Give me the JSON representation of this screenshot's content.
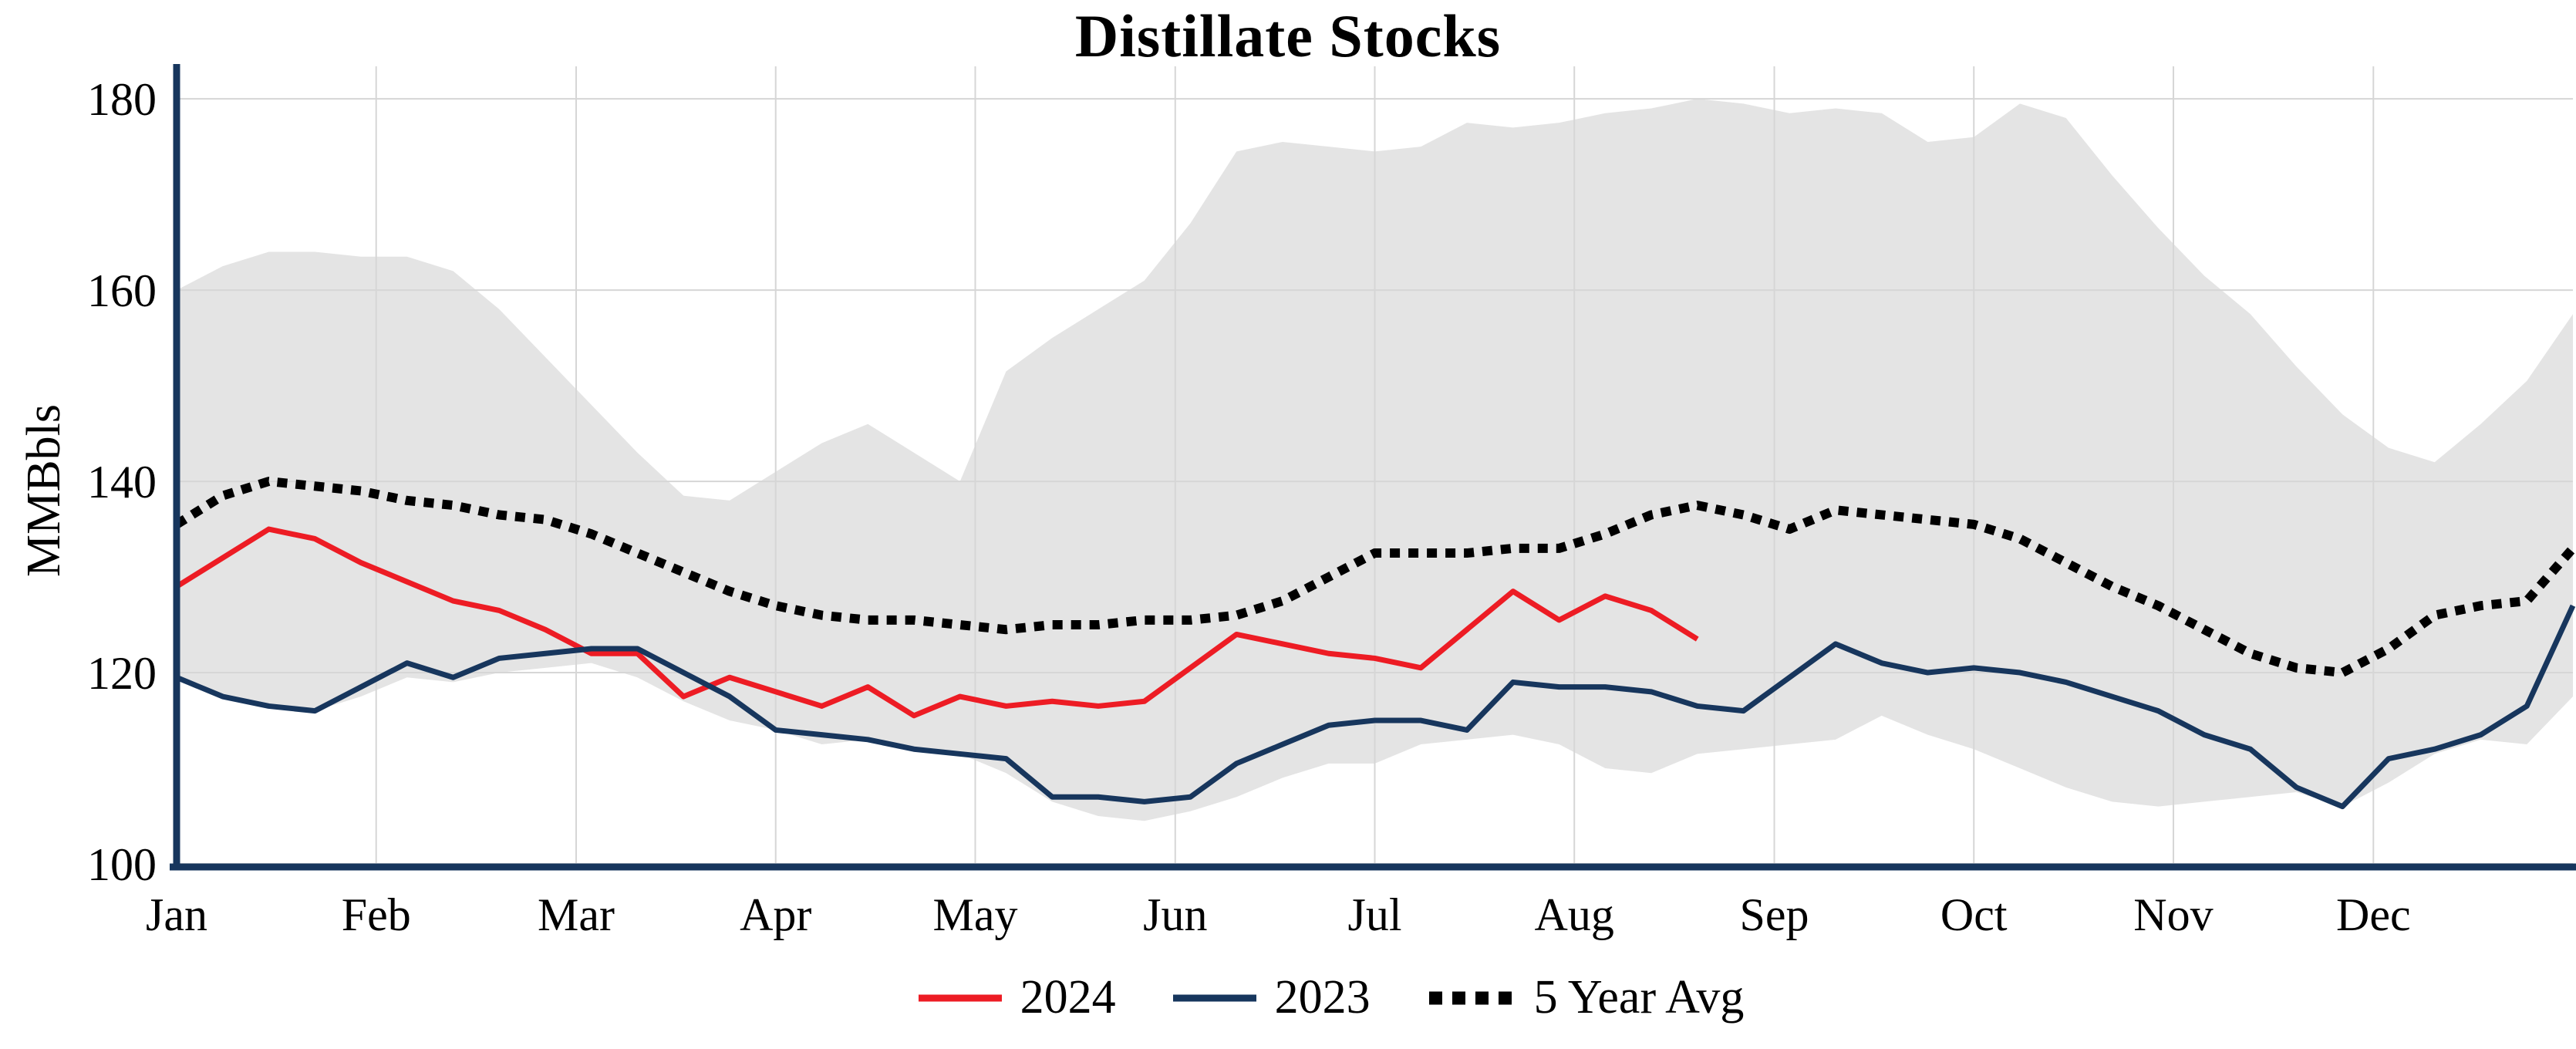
{
  "chart_data": {
    "type": "line",
    "title": "Distillate Stocks",
    "ylabel": "MMBbls",
    "xlabel": "",
    "ylim": [
      100,
      183.4
    ],
    "yticks": [
      100,
      120,
      140,
      160,
      180
    ],
    "grid": true,
    "legend_position": "bottom-center",
    "colors": {
      "axis": "#17365d",
      "grid": "#d6d6d6",
      "band": "#e4e4e4",
      "red_2024": "#ed1c24",
      "navy_2023": "#17365d",
      "avg_black": "#000000"
    },
    "x_axis": {
      "unit": "week-of-year (index of each value)",
      "range": [
        0,
        52
      ],
      "month_labels": [
        "Jan",
        "Feb",
        "Mar",
        "Apr",
        "May",
        "Jun",
        "Jul",
        "Aug",
        "Sep",
        "Oct",
        "Nov",
        "Dec"
      ],
      "tick_weeks": [
        0,
        4.33,
        8.67,
        13,
        17.33,
        21.67,
        26,
        30.33,
        34.67,
        39,
        43.33,
        47.67
      ]
    },
    "band": {
      "name": "5 Year Range",
      "color": "#e4e4e4",
      "upper": [
        160,
        162.5,
        164,
        164,
        163.5,
        163.5,
        162,
        158,
        153,
        148,
        143,
        138.5,
        138,
        141,
        144,
        146,
        143,
        140,
        151.5,
        155,
        158,
        161,
        167,
        174.5,
        175.5,
        175,
        174.5,
        175,
        177.5,
        177,
        177.5,
        178.5,
        179,
        180,
        179.5,
        178.5,
        179,
        178.5,
        175.5,
        176,
        179.5,
        178,
        172,
        166.5,
        161.5,
        157.5,
        152,
        147,
        143.5,
        142,
        146,
        150.5,
        157.5
      ],
      "lower": [
        119.5,
        117.5,
        116.5,
        116,
        117.5,
        119.5,
        119,
        120,
        120.5,
        121,
        119.5,
        117,
        115,
        114,
        112.5,
        113,
        112,
        111.5,
        109.5,
        106.5,
        105,
        104.5,
        105.5,
        107,
        109,
        110.5,
        110.5,
        112.5,
        113,
        113.5,
        112.5,
        110,
        109.5,
        111.5,
        112,
        112.5,
        113,
        115.5,
        113.5,
        112,
        110,
        108,
        106.5,
        106,
        106.5,
        107,
        107.5,
        106,
        108.5,
        111.5,
        113,
        112.5,
        117.5
      ]
    },
    "series": [
      {
        "name": "2024",
        "color": "#ed1c24",
        "style": "solid",
        "values": [
          129,
          132,
          135,
          134,
          131.5,
          129.5,
          127.5,
          126.5,
          124.5,
          122,
          122,
          117.5,
          119.5,
          118,
          116.5,
          118.5,
          115.5,
          117.5,
          116.5,
          117,
          116.5,
          117,
          120.5,
          124,
          123,
          122,
          121.5,
          120.5,
          124.5,
          128.5,
          125.5,
          128,
          126.5,
          123.5
        ]
      },
      {
        "name": "2023",
        "color": "#17365d",
        "style": "solid",
        "values": [
          119.5,
          117.5,
          116.5,
          116,
          118.5,
          121,
          119.5,
          121.5,
          122,
          122.5,
          122.5,
          120,
          117.5,
          114,
          113.5,
          113,
          112,
          111.5,
          111,
          107,
          107,
          106.5,
          107,
          110.5,
          112.5,
          114.5,
          115,
          115,
          114,
          119,
          118.5,
          118.5,
          118,
          116.5,
          116,
          119.5,
          123,
          121,
          120,
          120.5,
          120,
          119,
          117.5,
          116,
          113.5,
          112,
          108,
          106,
          111,
          112,
          113.5,
          116.5,
          127
        ]
      },
      {
        "name": "5 Year Avg",
        "color": "#000000",
        "style": "dotted",
        "values": [
          135.5,
          138.5,
          140,
          139.5,
          139,
          138,
          137.5,
          136.5,
          136,
          134.5,
          132.5,
          130.5,
          128.5,
          127,
          126,
          125.5,
          125.5,
          125,
          124.5,
          125,
          125,
          125.5,
          125.5,
          126,
          127.5,
          130,
          132.5,
          132.5,
          132.5,
          133,
          133,
          134.5,
          136.5,
          137.5,
          136.5,
          135,
          137,
          136.5,
          136,
          135.5,
          134,
          131.5,
          129,
          127,
          124.5,
          122,
          120.5,
          120,
          122.5,
          126,
          127,
          127.5,
          133
        ]
      }
    ]
  }
}
